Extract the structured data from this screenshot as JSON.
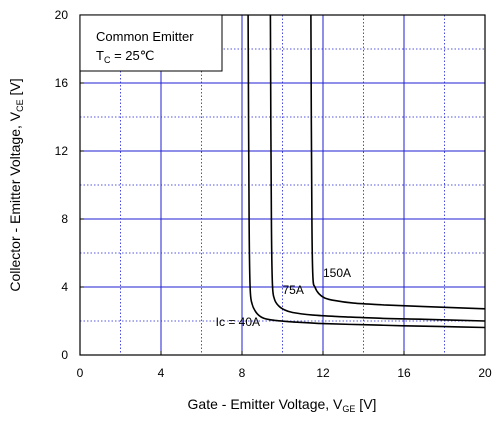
{
  "chart_data": {
    "type": "line",
    "xlabel": {
      "main": "Gate - Emitter Voltage, V",
      "sub": "GE",
      "unit": " [V]"
    },
    "ylabel": {
      "main": "Collector - Emitter Voltage, V",
      "sub": "CE",
      "unit": " [V]"
    },
    "xlim": [
      0,
      20
    ],
    "ylim": [
      0,
      20
    ],
    "xticks": [
      0,
      4,
      8,
      12,
      16,
      20
    ],
    "yticks": [
      0,
      4,
      8,
      12,
      16,
      20
    ],
    "grid": true,
    "legend": {
      "line1": "Common Emitter",
      "line2_main": "T",
      "line2_sub": "C",
      "line2_rest": " = 25℃",
      "placement": "top-left"
    },
    "series": [
      {
        "name": "Ic = 40A",
        "x": [
          8.3,
          8.35,
          8.4,
          8.5,
          8.7,
          9.0,
          9.5,
          10.5,
          12,
          14,
          16,
          18,
          20
        ],
        "y": [
          20,
          8,
          4,
          3.0,
          2.5,
          2.2,
          2.05,
          1.95,
          1.85,
          1.78,
          1.72,
          1.67,
          1.62
        ]
      },
      {
        "name": "75A",
        "x": [
          9.4,
          9.45,
          9.5,
          9.6,
          9.8,
          10.1,
          10.5,
          11.5,
          13,
          15,
          17,
          20
        ],
        "y": [
          20,
          8,
          4.2,
          3.3,
          2.9,
          2.65,
          2.5,
          2.35,
          2.25,
          2.15,
          2.1,
          2.0
        ]
      },
      {
        "name": "150A",
        "x": [
          11.4,
          11.45,
          11.5,
          11.6,
          11.8,
          12.1,
          12.6,
          13.5,
          15,
          17,
          20
        ],
        "y": [
          20,
          8,
          4.6,
          4.0,
          3.6,
          3.35,
          3.2,
          3.05,
          2.95,
          2.85,
          2.72
        ]
      }
    ],
    "annotations": [
      {
        "text": "Ic = 40A",
        "x": 6.7,
        "y": 1.7
      },
      {
        "text": "75A",
        "x": 10.0,
        "y": 3.6
      },
      {
        "text": "150A",
        "x": 12.0,
        "y": 4.6
      }
    ]
  }
}
